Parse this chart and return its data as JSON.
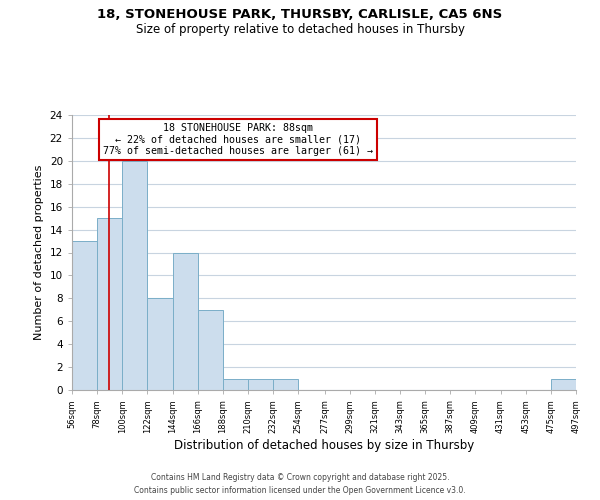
{
  "title_line1": "18, STONEHOUSE PARK, THURSBY, CARLISLE, CA5 6NS",
  "title_line2": "Size of property relative to detached houses in Thursby",
  "xlabel": "Distribution of detached houses by size in Thursby",
  "ylabel": "Number of detached properties",
  "bar_edges": [
    56,
    78,
    100,
    122,
    144,
    166,
    188,
    210,
    232,
    254,
    277,
    299,
    321,
    343,
    365,
    387,
    409,
    431,
    453,
    475,
    497
  ],
  "bar_heights": [
    13,
    15,
    20,
    8,
    12,
    7,
    1,
    1,
    1,
    0,
    0,
    0,
    0,
    0,
    0,
    0,
    0,
    0,
    0,
    1
  ],
  "bar_color": "#ccdded",
  "bar_edgecolor": "#7aaec8",
  "property_value": 88,
  "vline_color": "#cc0000",
  "annotation_title": "18 STONEHOUSE PARK: 88sqm",
  "annotation_line2": "← 22% of detached houses are smaller (17)",
  "annotation_line3": "77% of semi-detached houses are larger (61) →",
  "annotation_box_edgecolor": "#cc0000",
  "ylim": [
    0,
    24
  ],
  "yticks": [
    0,
    2,
    4,
    6,
    8,
    10,
    12,
    14,
    16,
    18,
    20,
    22,
    24
  ],
  "tick_labels": [
    "56sqm",
    "78sqm",
    "100sqm",
    "122sqm",
    "144sqm",
    "166sqm",
    "188sqm",
    "210sqm",
    "232sqm",
    "254sqm",
    "277sqm",
    "299sqm",
    "321sqm",
    "343sqm",
    "365sqm",
    "387sqm",
    "409sqm",
    "431sqm",
    "453sqm",
    "475sqm",
    "497sqm"
  ],
  "footer_line1": "Contains HM Land Registry data © Crown copyright and database right 2025.",
  "footer_line2": "Contains public sector information licensed under the Open Government Licence v3.0.",
  "bg_color": "#ffffff",
  "grid_color": "#c8d4e0"
}
